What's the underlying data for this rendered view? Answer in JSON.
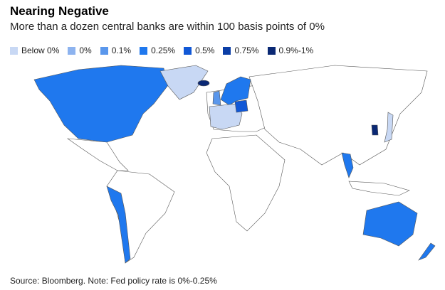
{
  "header": {
    "title": "Nearing Negative",
    "subtitle": "More than a dozen central banks are within 100 basis points of 0%"
  },
  "legend": {
    "items": [
      {
        "label": "Below 0%",
        "color": "#c8d8f4"
      },
      {
        "label": "0%",
        "color": "#8db3ef"
      },
      {
        "label": "0.1%",
        "color": "#5a97ec"
      },
      {
        "label": "0.25%",
        "color": "#1f78ee"
      },
      {
        "label": "0.5%",
        "color": "#1158d6"
      },
      {
        "label": "0.75%",
        "color": "#0b3ea6"
      },
      {
        "label": "0.9%-1%",
        "color": "#0a2874"
      }
    ]
  },
  "source": "Source: Bloomberg. Note: Fed policy rate is 0%-0.25%"
}
